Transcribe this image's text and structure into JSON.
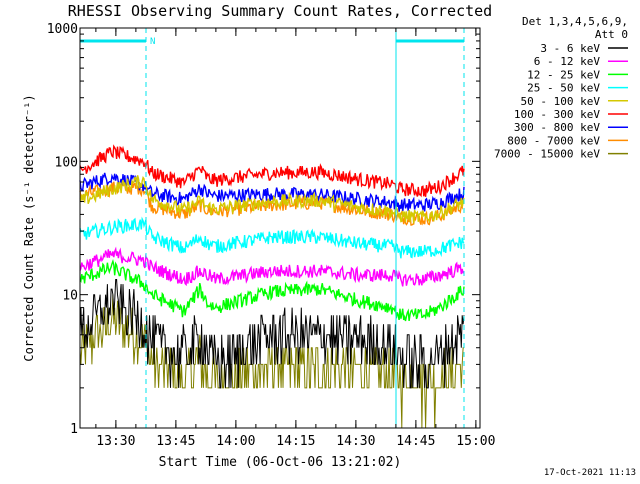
{
  "title": "RHESSI Observing Summary Count Rates, Corrected",
  "footer_timestamp": "17-Oct-2021 11:13",
  "chart_data": {
    "type": "line",
    "title": "RHESSI Observing Summary Count Rates, Corrected",
    "xlabel": "Start Time (06-Oct-06 13:21:02)",
    "ylabel": "Corrected Count Rate (s⁻¹ detector⁻¹)",
    "yscale": "log",
    "ylim": [
      1,
      1000
    ],
    "xlim_minutes_after_1321": [
      0,
      100
    ],
    "x_tick_labels": [
      "13:30",
      "13:45",
      "14:00",
      "14:15",
      "14:30",
      "14:45",
      "15:00"
    ],
    "x_tick_minutes": [
      8.97,
      23.97,
      38.97,
      53.97,
      68.97,
      83.97,
      98.97
    ],
    "y_tick_labels": [
      "1",
      "10",
      "100",
      "1000"
    ],
    "y_tick_values": [
      1,
      10,
      100,
      1000
    ],
    "legend_header": [
      "Det 1,3,4,5,6,9,",
      "Att 0"
    ],
    "legend_placement": "right",
    "flag_marks": [
      {
        "label": "N",
        "x_start": 0,
        "x_end": 16.5
      },
      {
        "label": "",
        "x_start": 79,
        "x_end": 96
      }
    ],
    "vertical_lines": [
      {
        "style": "solid",
        "x": 0
      },
      {
        "style": "dashed",
        "x": 16.5
      },
      {
        "style": "solid",
        "x": 79
      },
      {
        "style": "dashed",
        "x": 96
      }
    ],
    "x": [
      0,
      8,
      16,
      18,
      26,
      30,
      32,
      34,
      48,
      60,
      70,
      78,
      80,
      86,
      90,
      96
    ],
    "series": [
      {
        "name": "3 - 6 keV",
        "color": "#000000",
        "values": [
          5,
          9,
          6,
          4.5,
          3.5,
          5,
          4,
          3,
          5,
          5,
          4.5,
          4,
          3.5,
          3,
          3.5,
          5.5
        ]
      },
      {
        "name": "6 - 12 keV",
        "color": "#ff00ff",
        "values": [
          16,
          20,
          18,
          16,
          13,
          15,
          14,
          13,
          15,
          15,
          14,
          14,
          13,
          13,
          14,
          16
        ]
      },
      {
        "name": "12 - 25 keV",
        "color": "#00ff00",
        "values": [
          13,
          16,
          12,
          10,
          7.5,
          11,
          8.5,
          8,
          10.5,
          11,
          9,
          8,
          7,
          7,
          8,
          11
        ]
      },
      {
        "name": "25 - 50 keV",
        "color": "#00ffff",
        "values": [
          28,
          32,
          34,
          27,
          22,
          27,
          24,
          23,
          27,
          27,
          24,
          23,
          21,
          21,
          22,
          25
        ]
      },
      {
        "name": "50 - 100 keV",
        "color": "#d4c800",
        "values": [
          50,
          62,
          72,
          52,
          43,
          50,
          45,
          44,
          50,
          51,
          45,
          42,
          39,
          38,
          41,
          50
        ]
      },
      {
        "name": "100 - 300 keV",
        "color": "#ff0000",
        "values": [
          85,
          118,
          100,
          82,
          69,
          88,
          74,
          72,
          82,
          83,
          73,
          67,
          62,
          60,
          65,
          85
        ]
      },
      {
        "name": "300 - 800 keV",
        "color": "#0000ff",
        "values": [
          65,
          77,
          66,
          57,
          52,
          63,
          57,
          55,
          57,
          56,
          52,
          49,
          47,
          47,
          49,
          58
        ]
      },
      {
        "name": "800 - 7000 keV",
        "color": "#ff8c00",
        "values": [
          55,
          63,
          63,
          46,
          40,
          47,
          43,
          42,
          47,
          49,
          43,
          40,
          38,
          37,
          39,
          48
        ]
      },
      {
        "name": "7000 - 15000 keV",
        "color": "#808000",
        "values": [
          3.5,
          6.5,
          4.5,
          3.2,
          2.4,
          3.2,
          2.6,
          2.4,
          2.9,
          2.8,
          2.7,
          2.5,
          2.3,
          2.2,
          2.3,
          3.2
        ]
      }
    ]
  }
}
